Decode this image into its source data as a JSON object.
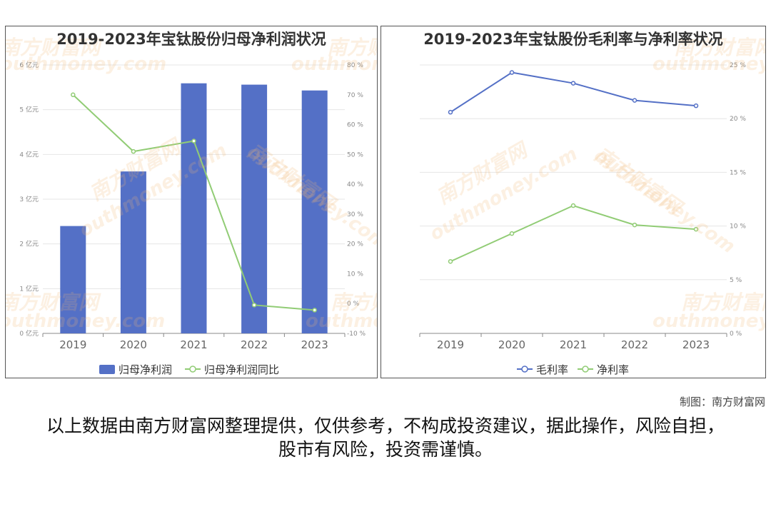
{
  "watermark": {
    "cn": "南方财富网",
    "en": "outhmoney.com"
  },
  "credit": "制图：南方财富网",
  "disclaimer": "以上数据由南方财富网整理提供，仅供参考，不构成投资建议，据此操作，风险自担，股市有风险，投资需谨慎。",
  "chart_data": [
    {
      "type": "bar",
      "title": "2019-2023年宝钛股份归母净利润状况",
      "categories": [
        "2019",
        "2020",
        "2021",
        "2022",
        "2023"
      ],
      "series": [
        {
          "name": "归母净利润",
          "type": "bar",
          "axis": "left",
          "values": [
            2.4,
            3.62,
            5.59,
            5.56,
            5.43
          ],
          "color": "#5470c6"
        },
        {
          "name": "归母净利润同比",
          "type": "line",
          "axis": "right",
          "values": [
            70,
            51,
            54.5,
            -0.5,
            -2.2
          ],
          "color": "#91cc75"
        }
      ],
      "y_left": {
        "ticks": [
          "0 亿元",
          "1 亿元",
          "2 亿元",
          "3 亿元",
          "4 亿元",
          "5 亿元",
          "6 亿元"
        ],
        "range": [
          0,
          6
        ]
      },
      "y_right": {
        "ticks": [
          "-10 %",
          "0 %",
          "10 %",
          "20 %",
          "30 %",
          "40 %",
          "50 %",
          "60 %",
          "70 %",
          "80 %"
        ],
        "range": [
          -10,
          80
        ]
      },
      "legend_position": "bottom-center",
      "grid": true
    },
    {
      "type": "line",
      "title": "2019-2023年宝钛股份毛利率与净利率状况",
      "categories": [
        "2019",
        "2020",
        "2021",
        "2022",
        "2023"
      ],
      "series": [
        {
          "name": "毛利率",
          "values": [
            20.6,
            24.3,
            23.3,
            21.7,
            21.2
          ],
          "color": "#5470c6"
        },
        {
          "name": "净利率",
          "values": [
            6.7,
            9.3,
            11.9,
            10.1,
            9.7
          ],
          "color": "#91cc75"
        }
      ],
      "y_right": {
        "ticks": [
          "0 %",
          "5 %",
          "10 %",
          "15 %",
          "20 %",
          "25 %"
        ],
        "range": [
          0,
          25
        ]
      },
      "legend_position": "bottom-center",
      "grid": true
    }
  ]
}
